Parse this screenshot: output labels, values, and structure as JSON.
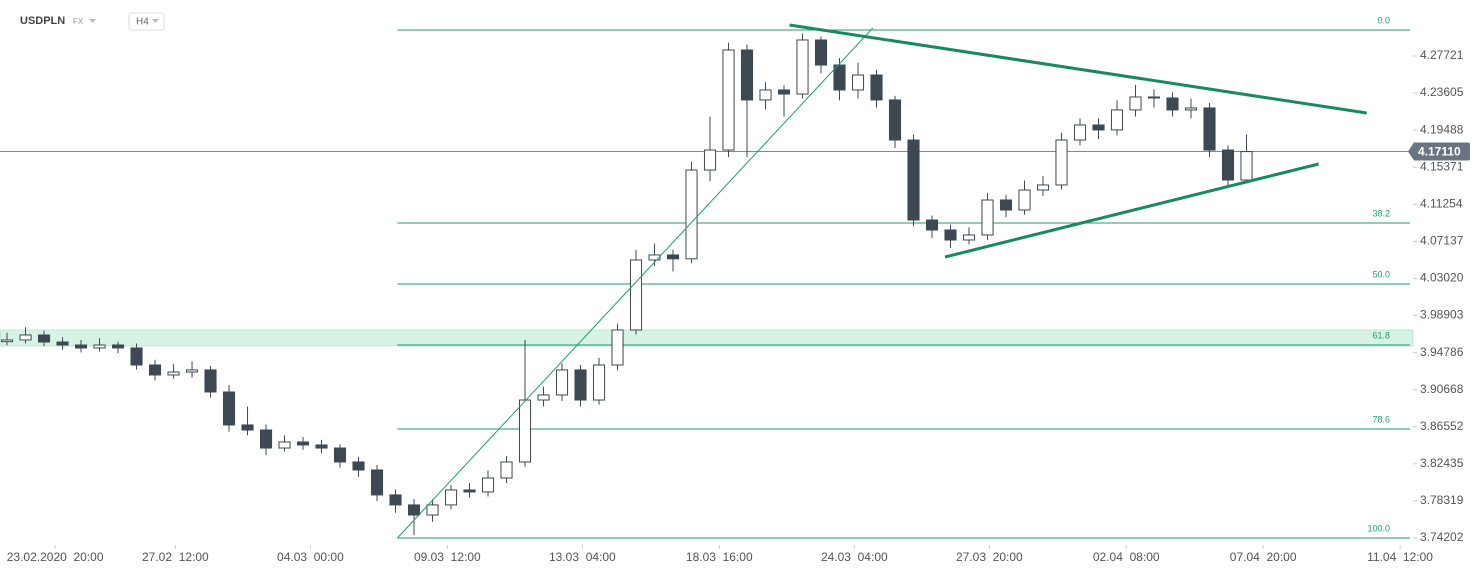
{
  "chart_data": {
    "type": "candlestick",
    "title": "USDPLN",
    "market": "FX",
    "timeframe": "H4",
    "xlim": [
      -0.38,
      76.0
    ],
    "ylim": [
      3.7342,
      4.3394
    ],
    "xticks": [
      {
        "value": 2.6,
        "label": "23.02.2020  20:00"
      },
      {
        "value": 9.1,
        "label": "27.02  12:00"
      },
      {
        "value": 16.4,
        "label": "04.03  00:00"
      },
      {
        "value": 23.8,
        "label": "09.03  12:00"
      },
      {
        "value": 31.1,
        "label": "13.03  04:00"
      },
      {
        "value": 38.5,
        "label": "18.03  16:00"
      },
      {
        "value": 45.8,
        "label": "24.03  04:00"
      },
      {
        "value": 53.1,
        "label": "27.03  20:00"
      },
      {
        "value": 60.5,
        "label": "02.04  08:00"
      },
      {
        "value": 67.9,
        "label": "07.04  20:00"
      },
      {
        "value": 75.3,
        "label": "11.04  12:00"
      }
    ],
    "yticks": [
      3.74202,
      3.78319,
      3.82435,
      3.86552,
      3.90668,
      3.94786,
      {
        "value": 3.98903,
        "label": "3.98903"
      },
      {
        "value": 4.0302,
        "label": "4.03020"
      },
      4.07137,
      4.11254,
      4.15371,
      4.19488,
      4.23605,
      4.27721
    ],
    "up_color": "#ffffff",
    "down_color": "#3d4852",
    "open": [
      3.96,
      3.9619,
      3.9674,
      3.9596,
      3.9563,
      3.953,
      3.9563,
      3.953,
      3.9341,
      3.923,
      3.9263,
      3.9286,
      3.9041,
      3.8675,
      3.8619,
      3.8419,
      3.8486,
      3.8453,
      3.8419,
      3.8264,
      3.8175,
      3.7898,
      3.7787,
      3.7675,
      3.7787,
      3.7953,
      3.7931,
      3.8086,
      3.8264,
      3.8952,
      3.9008,
      3.9286,
      3.8952,
      3.9341,
      3.973,
      4.0507,
      4.0563,
      4.052,
      4.1506,
      4.1728,
      4.2839,
      4.2284,
      4.2395,
      4.235,
      4.295,
      4.2672,
      4.2395,
      4.2561,
      4.2284,
      4.1839,
      4.0951,
      4.084,
      4.0729,
      4.0785,
      4.1173,
      4.1062,
      4.1284,
      4.134,
      4.1839,
      4.2006,
      4.1951,
      4.2173,
      4.2317,
      4.2306,
      4.2173,
      4.2195,
      4.1728,
      4.1395
    ],
    "high": [
      3.97,
      3.976,
      3.972,
      3.965,
      3.962,
      3.964,
      3.96,
      3.958,
      3.94,
      3.935,
      3.938,
      3.933,
      3.912,
      3.888,
      3.868,
      3.856,
      3.854,
      3.851,
      3.846,
      3.832,
      3.823,
      3.796,
      3.785,
      3.785,
      3.801,
      3.803,
      3.817,
      3.833,
      3.962,
      3.91,
      3.936,
      3.934,
      3.942,
      3.98,
      4.062,
      4.069,
      4.062,
      4.16,
      4.21,
      4.292,
      4.29,
      4.248,
      4.245,
      4.302,
      4.299,
      4.275,
      4.27,
      4.262,
      4.233,
      4.19,
      4.1,
      4.09,
      4.087,
      4.125,
      4.123,
      4.139,
      4.144,
      4.192,
      4.208,
      4.208,
      4.228,
      4.245,
      4.24,
      4.237,
      4.23,
      4.225,
      4.178,
      4.19
    ],
    "low": [
      3.956,
      3.958,
      3.955,
      3.951,
      3.948,
      3.949,
      3.947,
      3.929,
      3.917,
      3.919,
      3.92,
      3.898,
      3.86,
      3.856,
      3.834,
      3.838,
      3.84,
      3.836,
      3.82,
      3.81,
      3.783,
      3.77,
      3.745,
      3.76,
      3.774,
      3.787,
      3.788,
      3.803,
      3.821,
      3.888,
      3.894,
      3.888,
      3.89,
      3.928,
      3.968,
      4.044,
      4.038,
      4.047,
      4.138,
      4.165,
      4.165,
      4.218,
      4.21,
      4.23,
      4.258,
      4.228,
      4.23,
      4.22,
      4.175,
      4.088,
      4.075,
      4.064,
      4.068,
      4.073,
      4.098,
      4.101,
      4.122,
      4.129,
      4.178,
      4.185,
      4.189,
      4.21,
      4.22,
      4.21,
      4.208,
      4.165,
      4.133,
      4.137
    ],
    "close": [
      3.9619,
      3.9674,
      3.9596,
      3.9563,
      3.953,
      3.9563,
      3.953,
      3.9341,
      3.923,
      3.9263,
      3.9286,
      3.9041,
      3.8675,
      3.8619,
      3.8419,
      3.8486,
      3.8453,
      3.8419,
      3.8264,
      3.8175,
      3.7898,
      3.7787,
      3.7675,
      3.7787,
      3.7953,
      3.7931,
      3.8086,
      3.8264,
      3.8952,
      3.9008,
      3.9286,
      3.8952,
      3.9341,
      3.973,
      4.0507,
      4.0563,
      4.052,
      4.1506,
      4.1728,
      4.2839,
      4.2284,
      4.2395,
      4.235,
      4.295,
      4.2672,
      4.2395,
      4.2561,
      4.2284,
      4.1839,
      4.0951,
      4.084,
      4.0729,
      4.0785,
      4.1173,
      4.1062,
      4.1284,
      4.134,
      4.1839,
      4.2006,
      4.1951,
      4.2173,
      4.2317,
      4.2306,
      4.2173,
      4.2195,
      4.1728,
      4.1395,
      4.1711
    ],
    "fib_levels": [
      {
        "label": "0.0",
        "price": 4.3061
      },
      {
        "label": "38.2",
        "price": 4.0918
      },
      {
        "label": "50.0",
        "price": 4.024
      },
      {
        "label": "61.8",
        "price": 3.9563
      },
      {
        "label": "78.6",
        "price": 3.863
      },
      {
        "label": "100.0",
        "price": 3.742
      }
    ],
    "fib_color": "#1f9e6e",
    "zone": [
      3.9552,
      3.973
    ],
    "zone_color": "#d6f3e6",
    "lines": [
      {
        "x": [
          21.1,
          46.8
        ],
        "y": [
          3.742,
          4.3083
        ],
        "color": "#1f9e6e",
        "width": 1
      },
      {
        "x": [
          42.3,
          73.5
        ],
        "y": [
          4.3116,
          4.2139
        ],
        "color": "#1a8a5e",
        "width": 3
      },
      {
        "x": [
          50.7,
          70.9
        ],
        "y": [
          4.054,
          4.1573
        ],
        "color": "#1a8a5e",
        "width": 3
      }
    ],
    "last_price": {
      "value": 4.1711,
      "label": "4.17110"
    }
  }
}
